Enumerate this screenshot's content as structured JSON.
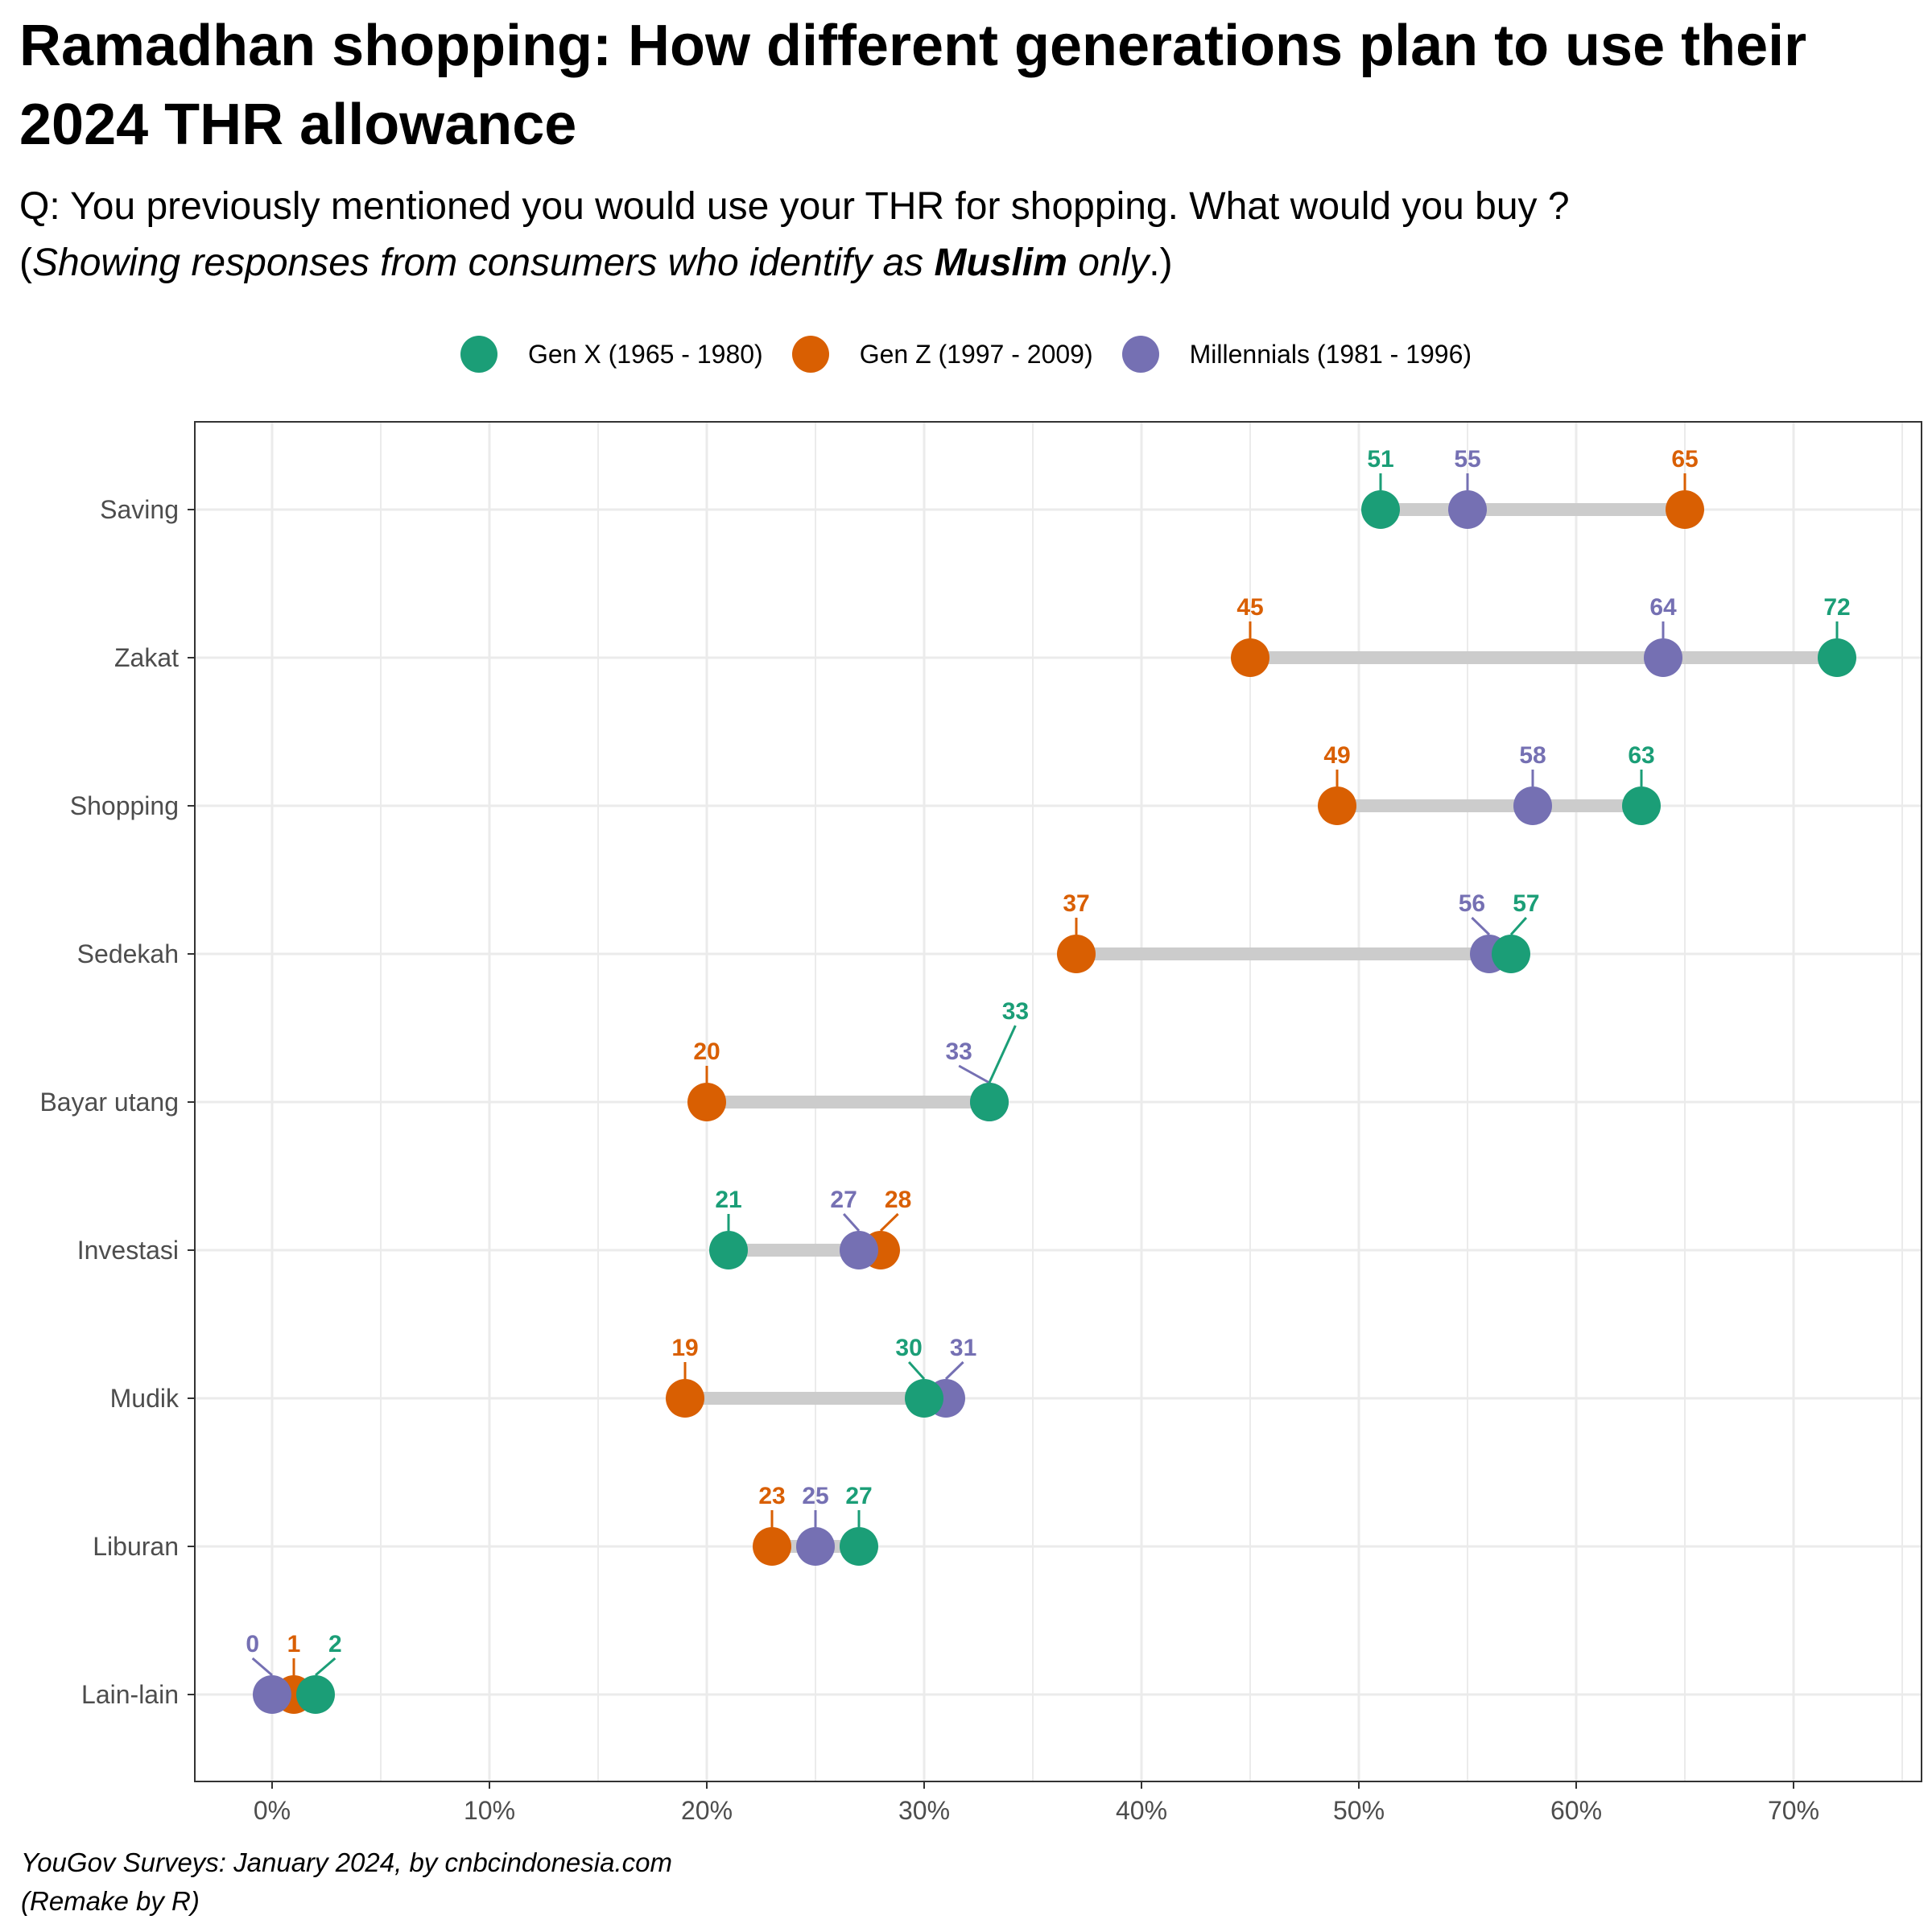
{
  "title": "Ramadhan shopping: How different generations plan to use their 2024 THR allowance",
  "subtitle": {
    "line1": "Q: You previously mentioned you would use your THR for shopping. What would you buy ?",
    "line2_open": "(",
    "line2_italic": "Showing responses from consumers who identify as ",
    "line2_bold": "Muslim",
    "line2_italic2": " only",
    "line2_close": ".)"
  },
  "caption": {
    "line1": "YouGov Surveys: January 2024, by cnbcindonesia.com",
    "line2": "(Remake by R)"
  },
  "colors": {
    "gen_x": "#1b9e77",
    "gen_z": "#d95f02",
    "millennials": "#7570b3",
    "segment": "#cccccc",
    "grid": "#ebebeb",
    "panel_border": "#333333"
  },
  "chart_data": {
    "type": "dumbbell",
    "title": "Ramadhan shopping: How different generations plan to use their 2024 THR allowance",
    "xlabel": "",
    "ylabel": "",
    "xlim": [
      -3.6,
      75.6
    ],
    "x_ticks": [
      0,
      10,
      20,
      30,
      40,
      50,
      60,
      70
    ],
    "x_tick_labels": [
      "0%",
      "10%",
      "20%",
      "30%",
      "40%",
      "50%",
      "60%",
      "70%"
    ],
    "grid": true,
    "legend_position": "top",
    "categories": [
      "Saving",
      "Zakat",
      "Shopping",
      "Sedekah",
      "Bayar utang",
      "Investasi",
      "Mudik",
      "Liburan",
      "Lain-lain"
    ],
    "series": [
      {
        "name": "Gen X (1965 - 1980)",
        "key": "gen_x",
        "values": [
          51,
          72,
          63,
          57,
          33,
          21,
          30,
          27,
          2
        ]
      },
      {
        "name": "Gen Z (1997 - 2009)",
        "key": "gen_z",
        "values": [
          65,
          45,
          49,
          37,
          20,
          28,
          19,
          23,
          1
        ]
      },
      {
        "name": "Millennials (1981 - 1996)",
        "key": "millennials",
        "values": [
          55,
          64,
          58,
          56,
          33,
          27,
          31,
          25,
          0
        ]
      }
    ]
  }
}
